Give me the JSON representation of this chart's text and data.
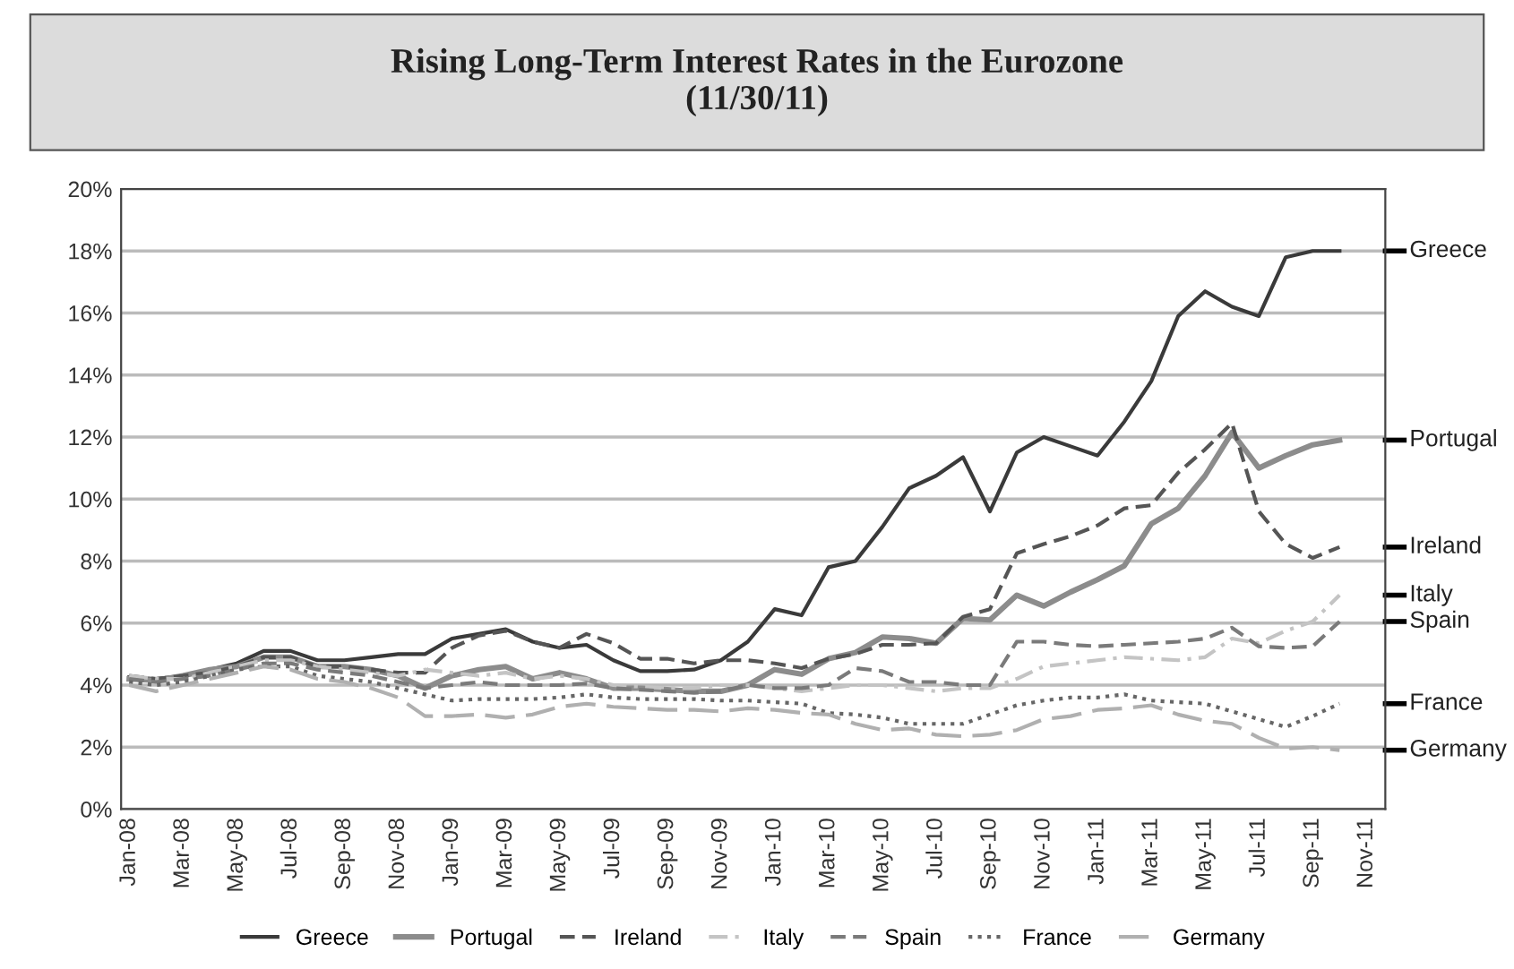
{
  "chart_data": {
    "type": "line",
    "title": "Rising Long-Term Interest Rates in the Eurozone\n(11/30/11)",
    "categories": [
      "Jan-08",
      null,
      "Mar-08",
      null,
      "May-08",
      null,
      "Jul-08",
      null,
      "Sep-08",
      null,
      "Nov-08",
      null,
      "Jan-09",
      null,
      "Mar-09",
      null,
      "May-09",
      null,
      "Jul-09",
      null,
      "Sep-09",
      null,
      "Nov-09",
      null,
      "Jan-10",
      null,
      "Mar-10",
      null,
      "May-10",
      null,
      "Jul-10",
      null,
      "Sep-10",
      null,
      "Nov-10",
      null,
      "Jan-11",
      null,
      "Mar-11",
      null,
      "May-11",
      null,
      "Jul-11",
      null,
      "Sep-11",
      null,
      "Nov-11"
    ],
    "series": [
      {
        "name": "Greece",
        "color": "#3a3a3a",
        "line_style": "solid",
        "values": [
          4.25,
          4.2,
          4.3,
          4.5,
          4.7,
          5.1,
          5.1,
          4.8,
          4.8,
          4.9,
          5.0,
          5.0,
          5.5,
          5.65,
          5.8,
          5.4,
          5.2,
          5.3,
          4.8,
          4.45,
          4.45,
          4.5,
          4.8,
          5.4,
          6.45,
          6.25,
          7.8,
          8.0,
          9.1,
          10.35,
          10.75,
          11.35,
          9.6,
          11.5,
          12.0,
          11.7,
          11.4,
          12.5,
          13.8,
          15.9,
          16.7,
          16.2,
          15.9,
          17.8,
          18.0,
          18.0,
          null
        ]
      },
      {
        "name": "Portugal",
        "color": "#8c8c8c",
        "line_style": "solid",
        "values": [
          4.2,
          4.15,
          4.3,
          4.5,
          4.6,
          4.9,
          4.9,
          4.6,
          4.6,
          4.5,
          4.3,
          3.9,
          4.3,
          4.5,
          4.6,
          4.2,
          4.4,
          4.2,
          3.9,
          3.9,
          3.85,
          3.8,
          3.8,
          4.0,
          4.5,
          4.35,
          4.85,
          5.05,
          5.55,
          5.5,
          5.35,
          6.15,
          6.1,
          6.9,
          6.55,
          7.0,
          7.4,
          7.85,
          9.2,
          9.7,
          10.75,
          12.15,
          11.0,
          11.4,
          11.75,
          11.9,
          null
        ]
      },
      {
        "name": "Ireland",
        "color": "#555555",
        "line_style": "dashed",
        "values": [
          4.3,
          4.2,
          4.3,
          4.4,
          4.6,
          4.9,
          4.9,
          4.6,
          4.6,
          4.5,
          4.4,
          4.4,
          5.2,
          5.6,
          5.75,
          5.4,
          5.2,
          5.65,
          5.35,
          4.85,
          4.85,
          4.7,
          4.8,
          4.8,
          4.7,
          4.55,
          4.85,
          5.0,
          5.3,
          5.3,
          5.35,
          6.2,
          6.45,
          8.25,
          8.55,
          8.8,
          9.15,
          9.7,
          9.8,
          10.85,
          11.6,
          12.45,
          9.6,
          8.55,
          8.1,
          8.45,
          null
        ]
      },
      {
        "name": "Italy",
        "color": "#c4c4c4",
        "line_style": "dashdot",
        "values": [
          4.3,
          4.2,
          4.2,
          4.4,
          4.6,
          4.8,
          4.8,
          4.6,
          4.5,
          4.4,
          4.3,
          4.5,
          4.4,
          4.3,
          4.4,
          4.2,
          4.3,
          4.2,
          4.0,
          3.95,
          3.9,
          3.9,
          4.0,
          4.0,
          3.9,
          3.8,
          3.9,
          4.0,
          4.0,
          3.9,
          3.8,
          3.9,
          3.9,
          4.2,
          4.6,
          4.7,
          4.8,
          4.9,
          4.85,
          4.8,
          4.9,
          5.5,
          5.35,
          5.75,
          6.05,
          6.9,
          null
        ]
      },
      {
        "name": "Spain",
        "color": "#7a7a7a",
        "line_style": "dashed",
        "values": [
          4.2,
          4.1,
          4.2,
          4.3,
          4.5,
          4.7,
          4.7,
          4.5,
          4.4,
          4.3,
          4.1,
          3.9,
          4.0,
          4.1,
          4.0,
          4.0,
          4.0,
          4.05,
          3.9,
          3.85,
          3.8,
          3.75,
          3.8,
          4.0,
          3.9,
          3.9,
          4.0,
          4.55,
          4.45,
          4.1,
          4.1,
          4.0,
          4.0,
          5.4,
          5.4,
          5.3,
          5.25,
          5.3,
          5.35,
          5.4,
          5.5,
          5.85,
          5.25,
          5.2,
          5.25,
          6.05,
          null
        ]
      },
      {
        "name": "France",
        "color": "#666666",
        "line_style": "dotted",
        "values": [
          4.1,
          4.0,
          4.1,
          4.3,
          4.5,
          4.6,
          4.6,
          4.3,
          4.2,
          4.1,
          3.9,
          3.7,
          3.5,
          3.55,
          3.55,
          3.55,
          3.6,
          3.7,
          3.6,
          3.55,
          3.55,
          3.55,
          3.5,
          3.5,
          3.45,
          3.4,
          3.1,
          3.05,
          2.95,
          2.75,
          2.75,
          2.75,
          3.05,
          3.35,
          3.5,
          3.6,
          3.6,
          3.7,
          3.5,
          3.45,
          3.4,
          3.15,
          2.9,
          2.65,
          3.0,
          3.4,
          null
        ]
      },
      {
        "name": "Germany",
        "color": "#b0b0b0",
        "line_style": "longdash",
        "values": [
          4.0,
          3.8,
          4.0,
          4.2,
          4.4,
          4.6,
          4.5,
          4.2,
          4.1,
          3.9,
          3.6,
          3.0,
          3.0,
          3.05,
          2.95,
          3.05,
          3.3,
          3.4,
          3.3,
          3.25,
          3.2,
          3.2,
          3.15,
          3.25,
          3.2,
          3.1,
          3.05,
          2.75,
          2.55,
          2.6,
          2.4,
          2.35,
          2.4,
          2.55,
          2.9,
          3.0,
          3.2,
          3.25,
          3.35,
          3.05,
          2.85,
          2.75,
          2.3,
          1.95,
          2.0,
          1.9,
          null
        ]
      }
    ],
    "ylim": [
      0,
      20
    ],
    "yticks": [
      {
        "value": 0,
        "label": "0%"
      },
      {
        "value": 2,
        "label": "2%"
      },
      {
        "value": 4,
        "label": "4%"
      },
      {
        "value": 6,
        "label": "6%"
      },
      {
        "value": 8,
        "label": "8%"
      },
      {
        "value": 10,
        "label": "10%"
      },
      {
        "value": 12,
        "label": "12%"
      },
      {
        "value": 14,
        "label": "14%"
      },
      {
        "value": 16,
        "label": "16%"
      },
      {
        "value": 18,
        "label": "18%"
      },
      {
        "value": 20,
        "label": "20%"
      }
    ],
    "grid": "y",
    "legend": "bottom",
    "marker": "none",
    "annotations": [
      "Greece",
      "Portugal",
      "Ireland",
      "Italy",
      "Spain",
      "France",
      "Germany"
    ]
  }
}
